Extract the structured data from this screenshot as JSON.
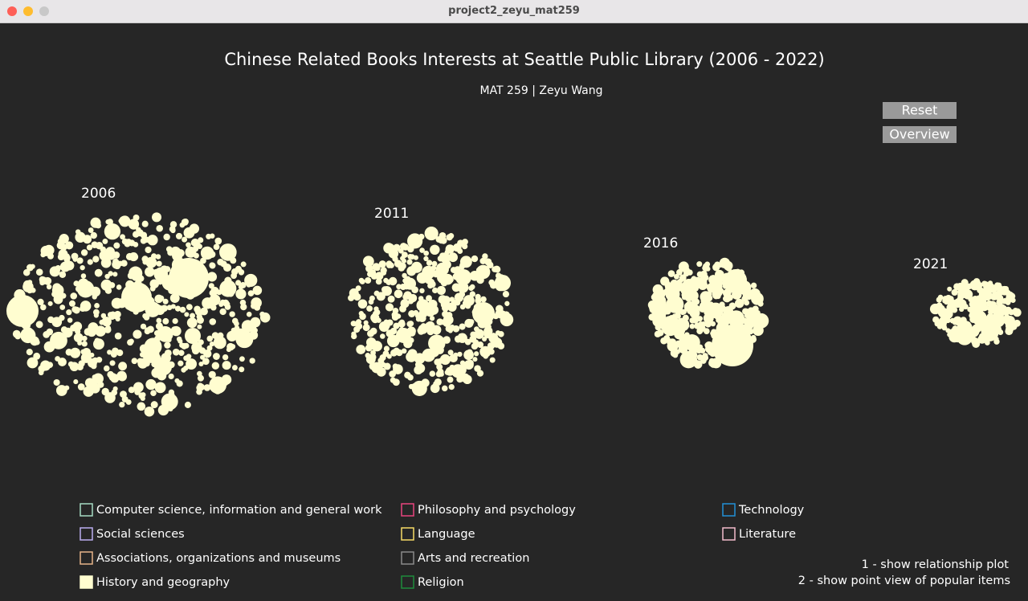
{
  "window": {
    "title": "project2_zeyu_mat259"
  },
  "header": {
    "title": "Chinese Related Books Interests at Seattle Public Library (2006 - 2022)",
    "subtitle": "MAT 259 | Zeyu Wang"
  },
  "buttons": [
    "Reset",
    "Overview"
  ],
  "years": [
    "2006",
    "2011",
    "2016",
    "2021"
  ],
  "legend": [
    {
      "label": "Computer science, information and general work",
      "color": "#a6dcc4",
      "selected": false
    },
    {
      "label": "Social sciences",
      "color": "#bcaef0",
      "selected": false
    },
    {
      "label": "Associations, organizations and museums",
      "color": "#e6b489",
      "selected": false
    },
    {
      "label": "History and geography",
      "color": "#fffdd0",
      "selected": true
    },
    {
      "label": "Philosophy and psychology",
      "color": "#e8457f",
      "selected": false
    },
    {
      "label": "Language",
      "color": "#f7dc66",
      "selected": false
    },
    {
      "label": "Arts and recreation",
      "color": "#8a8a8a",
      "selected": false
    },
    {
      "label": "Religion",
      "color": "#1e8c3c",
      "selected": false
    },
    {
      "label": "Technology",
      "color": "#2290d6",
      "selected": false
    },
    {
      "label": "Literature",
      "color": "#f2bccb",
      "selected": false
    }
  ],
  "help": [
    "1 - show relationship plot",
    "2 - show point view of popular items"
  ]
}
